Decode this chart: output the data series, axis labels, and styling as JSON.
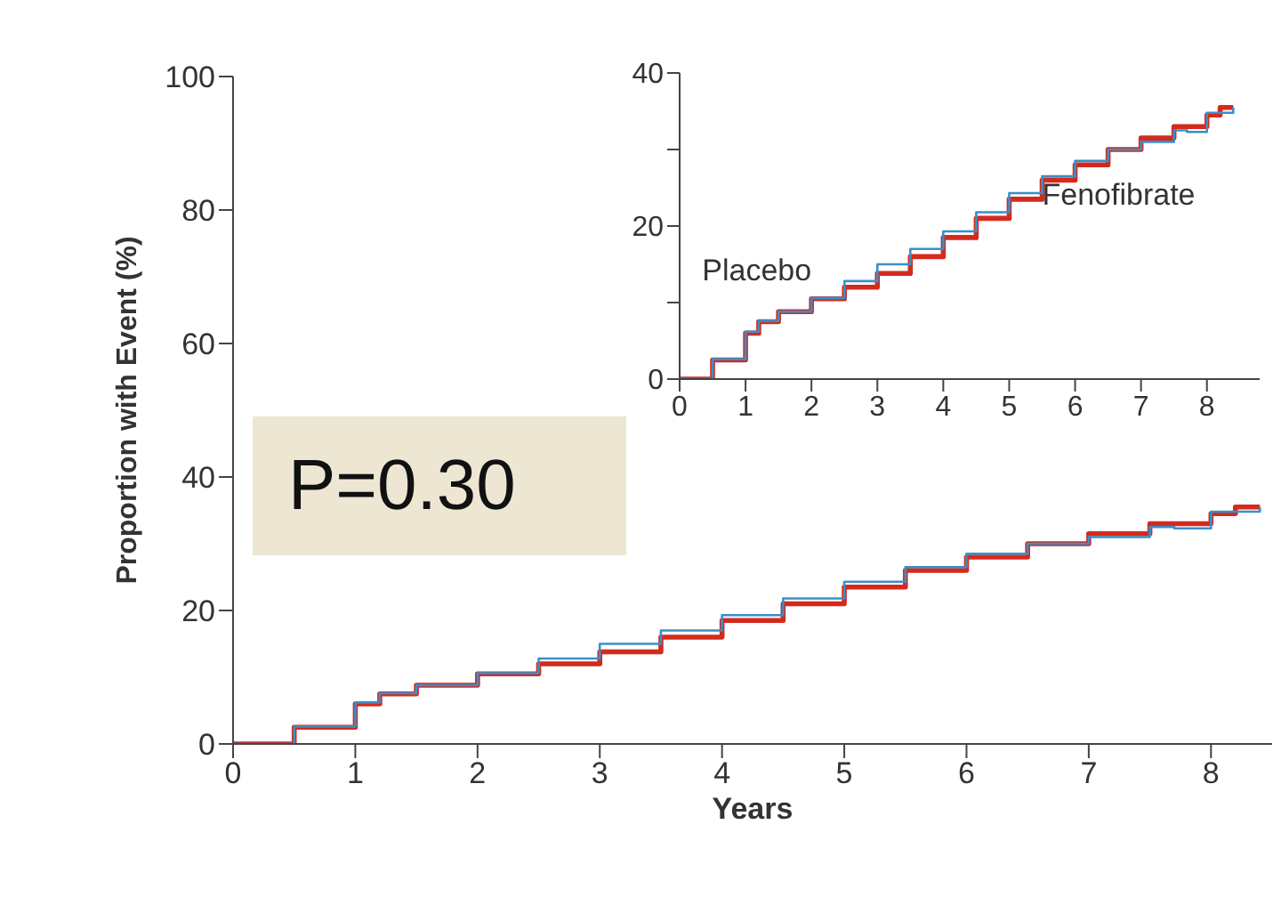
{
  "chart_data": [
    {
      "type": "step",
      "xlabel": "Years",
      "ylabel": "Proportion with Event (%)",
      "annotations": [
        "P=0.30"
      ],
      "xlim": [
        0,
        8.5
      ],
      "xticks": [
        0,
        1,
        2,
        3,
        4,
        5,
        6,
        7,
        8
      ],
      "ylim": [
        0,
        100
      ],
      "yticks": [
        0,
        20,
        40,
        60,
        80,
        100
      ],
      "series": [
        {
          "color": "#d42a1e",
          "x": [
            0,
            0.5,
            1,
            1.2,
            1.5,
            2,
            2.5,
            3,
            3.5,
            4,
            4.5,
            5,
            5.5,
            6,
            6.5,
            7,
            7.5,
            8,
            8.2,
            8.4
          ],
          "values": [
            0,
            2.5,
            6,
            7.5,
            8.8,
            10.5,
            12,
            13.8,
            16,
            18.5,
            21,
            23.5,
            26,
            28,
            30,
            31.5,
            33,
            34.5,
            35.5,
            35.5
          ]
        },
        {
          "color": "#3a8fc8",
          "x": [
            0,
            0.5,
            1,
            1.2,
            1.5,
            2,
            2.5,
            3,
            3.5,
            4,
            4.5,
            5,
            5.5,
            6,
            6.5,
            7,
            7.5,
            7.7,
            8,
            8.4
          ],
          "values": [
            0,
            2.6,
            6.2,
            7.6,
            8.8,
            10.6,
            12.8,
            15,
            17,
            19.3,
            21.8,
            24.3,
            26.5,
            28.5,
            30,
            31,
            32.5,
            32.3,
            34.8,
            35.5
          ]
        }
      ]
    },
    {
      "type": "step",
      "xlim": [
        0,
        8.8
      ],
      "xticks": [
        0,
        1,
        2,
        3,
        4,
        5,
        6,
        7,
        8
      ],
      "ylim": [
        0,
        40
      ],
      "yticks": [
        0,
        {
          "value": 10,
          "label": null
        },
        20,
        {
          "value": 30,
          "label": null
        },
        40
      ],
      "series": [
        {
          "name": "Fenofibrate",
          "color": "#d42a1e",
          "x": [
            0,
            0.5,
            1,
            1.2,
            1.5,
            2,
            2.5,
            3,
            3.5,
            4,
            4.5,
            5,
            5.5,
            6,
            6.5,
            7,
            7.5,
            8,
            8.2,
            8.4
          ],
          "values": [
            0,
            2.5,
            6,
            7.5,
            8.8,
            10.5,
            12,
            13.8,
            16,
            18.5,
            21,
            23.5,
            26,
            28,
            30,
            31.5,
            33,
            34.5,
            35.5,
            35.5
          ]
        },
        {
          "name": "Placebo",
          "color": "#3a8fc8",
          "x": [
            0,
            0.5,
            1,
            1.2,
            1.5,
            2,
            2.5,
            3,
            3.5,
            4,
            4.5,
            5,
            5.5,
            6,
            6.5,
            7,
            7.5,
            7.7,
            8,
            8.4
          ],
          "values": [
            0,
            2.6,
            6.2,
            7.6,
            8.8,
            10.6,
            12.8,
            15,
            17,
            19.3,
            21.8,
            24.3,
            26.5,
            28.5,
            30,
            31,
            32.5,
            32.3,
            34.8,
            35.5
          ]
        }
      ]
    }
  ]
}
